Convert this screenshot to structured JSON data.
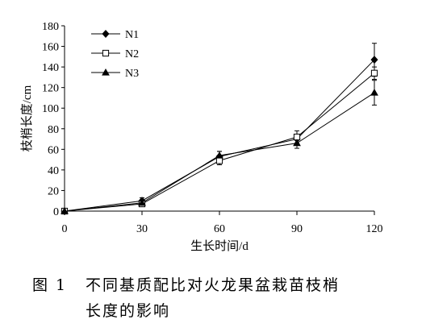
{
  "chart_data": {
    "type": "line",
    "title": "",
    "xlabel": "生长时间/d",
    "ylabel": "枝梢长度/cm",
    "x": [
      0,
      30,
      60,
      90,
      120
    ],
    "xticks": [
      "0",
      "30",
      "60",
      "90",
      "120"
    ],
    "yticks": [
      "0",
      "20",
      "40",
      "60",
      "80",
      "100",
      "120",
      "140",
      "160",
      "180"
    ],
    "xlim": [
      0,
      120
    ],
    "ylim": [
      0,
      180
    ],
    "grid": false,
    "legend_position": "top-left",
    "series": [
      {
        "name": "N1",
        "marker": "diamond",
        "values": [
          0,
          10,
          53,
          70,
          147
        ],
        "errors": [
          0,
          3,
          5,
          4,
          16
        ]
      },
      {
        "name": "N2",
        "marker": "square-open",
        "values": [
          0,
          7,
          49,
          72,
          134
        ],
        "errors": [
          0,
          2,
          4,
          6,
          6
        ]
      },
      {
        "name": "N3",
        "marker": "triangle",
        "values": [
          0,
          8,
          54,
          66,
          115
        ],
        "errors": [
          0,
          2,
          4,
          5,
          12
        ]
      }
    ]
  },
  "caption": {
    "number": "图 1",
    "line1": "不同基质配比对火龙果盆栽苗枝梢",
    "line2": "长度的影响"
  },
  "colors": {
    "ink": "#000000",
    "background": "#ffffff"
  }
}
